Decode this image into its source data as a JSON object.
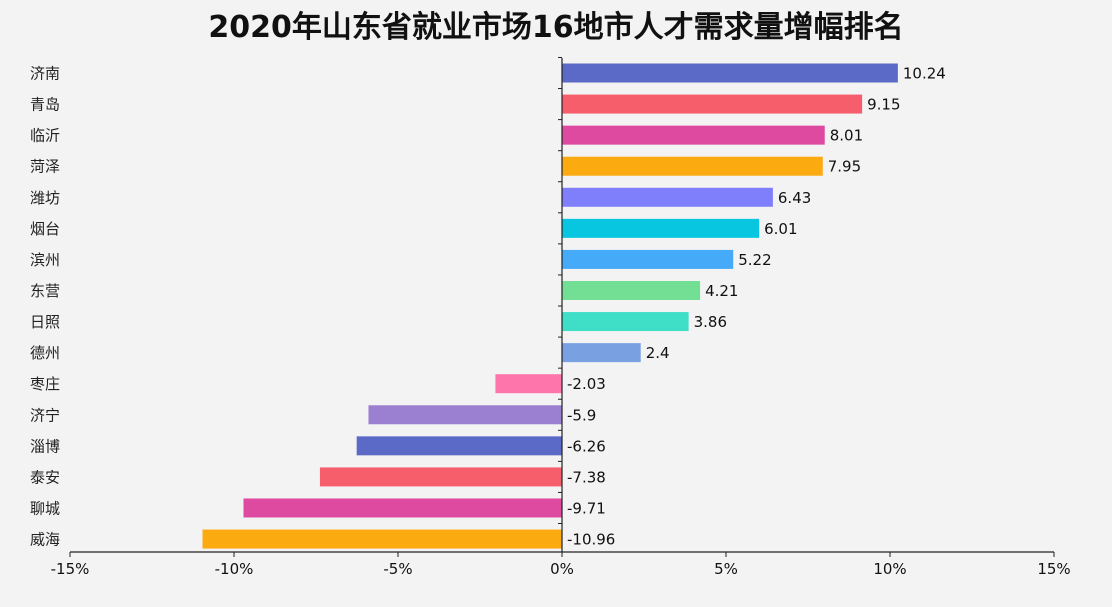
{
  "chart_data": {
    "type": "bar",
    "orientation": "horizontal",
    "title": "2020年山东省就业市场16地市人才需求量增幅排名",
    "xlabel": "",
    "ylabel": "",
    "xlim": [
      -15,
      15
    ],
    "x_ticks": [
      -15,
      -10,
      -5,
      0,
      5,
      10,
      15
    ],
    "x_tick_labels": [
      "-15%",
      "-10%",
      "-5%",
      "0%",
      "5%",
      "10%",
      "15%"
    ],
    "grid": false,
    "legend": "none",
    "categories": [
      "济南",
      "青岛",
      "临沂",
      "菏泽",
      "潍坊",
      "烟台",
      "滨州",
      "东营",
      "日照",
      "德州",
      "枣庄",
      "济宁",
      "淄博",
      "泰安",
      "聊城",
      "威海"
    ],
    "values": [
      10.24,
      9.15,
      8.01,
      7.95,
      6.43,
      6.01,
      5.22,
      4.21,
      3.86,
      2.4,
      -2.03,
      -5.9,
      -6.26,
      -7.38,
      -9.71,
      -10.96
    ],
    "value_labels": [
      "10.24",
      "9.15",
      "8.01",
      "7.95",
      "6.43",
      "6.01",
      "5.22",
      "4.21",
      "3.86",
      "2.4",
      "-2.03",
      "-5.9",
      "-6.26",
      "-7.38",
      "-9.71",
      "-10.96"
    ],
    "colors": [
      "#5b6ac6",
      "#f75e6c",
      "#dd4aa0",
      "#fbaa0f",
      "#7f7ffc",
      "#09c6e0",
      "#45aaf8",
      "#73df94",
      "#3fdec6",
      "#79a1e1",
      "#fd75ab",
      "#9b80d1",
      "#5b6ac6",
      "#f75e6c",
      "#dd4aa0",
      "#fbaa0f"
    ]
  }
}
